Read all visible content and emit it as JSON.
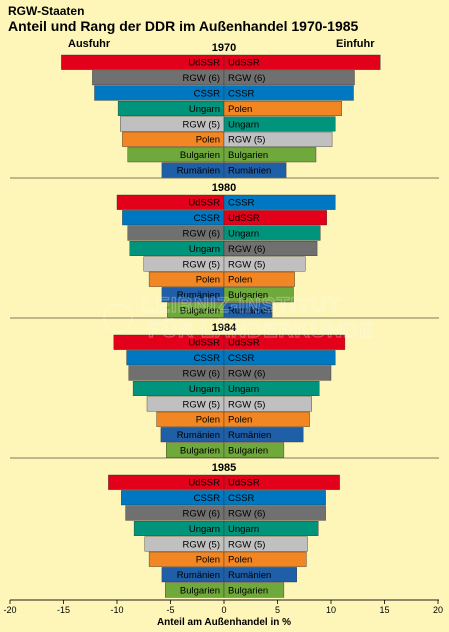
{
  "header": {
    "supertitle": "RGW-Staaten",
    "title": "Anteil und Rang der DDR im Außenhandel 1970-1985",
    "left_label": "Ausfuhr",
    "right_label": "Einfuhr"
  },
  "watermark": {
    "line1": "LEIBNIZ-INSTITUT",
    "line2": "FÜR LÄNDERKUNDE"
  },
  "colors": {
    "background": "#fdf6b8",
    "UdSSR": "#e2001a",
    "CSSR": "#0078c1",
    "RGW (6)": "#707070",
    "Ungarn": "#00947c",
    "RGW (5)": "#c0c0c0",
    "Polen": "#f28622",
    "Bulgarien": "#6fa83b",
    "Rumänien": "#1f5fa8"
  },
  "chart_data": {
    "type": "bar",
    "orientation": "horizontal-diverging",
    "xlabel": "Anteil am Außenhandel in %",
    "xlim": [
      -20,
      20
    ],
    "xticks": [
      -20,
      -15,
      -10,
      -5,
      0,
      5,
      10,
      15,
      20
    ],
    "panels": [
      {
        "year": "1970",
        "export": [
          {
            "label": "UdSSR",
            "value": 15.2
          },
          {
            "label": "RGW (6)",
            "value": 12.3
          },
          {
            "label": "CSSR",
            "value": 12.1
          },
          {
            "label": "Ungarn",
            "value": 9.9
          },
          {
            "label": "RGW (5)",
            "value": 9.7
          },
          {
            "label": "Polen",
            "value": 9.5
          },
          {
            "label": "Bulgarien",
            "value": 9.0
          },
          {
            "label": "Rumänien",
            "value": 5.8
          }
        ],
        "import": [
          {
            "label": "UdSSR",
            "value": 14.6
          },
          {
            "label": "RGW (6)",
            "value": 12.2
          },
          {
            "label": "CSSR",
            "value": 12.1
          },
          {
            "label": "Polen",
            "value": 11.0
          },
          {
            "label": "Ungarn",
            "value": 10.4
          },
          {
            "label": "RGW (5)",
            "value": 10.1
          },
          {
            "label": "Bulgarien",
            "value": 8.6
          },
          {
            "label": "Rumänien",
            "value": 5.8
          }
        ]
      },
      {
        "year": "1980",
        "export": [
          {
            "label": "UdSSR",
            "value": 10.0
          },
          {
            "label": "CSSR",
            "value": 9.5
          },
          {
            "label": "RGW (6)",
            "value": 9.0
          },
          {
            "label": "Ungarn",
            "value": 8.8
          },
          {
            "label": "RGW (5)",
            "value": 7.5
          },
          {
            "label": "Polen",
            "value": 7.0
          },
          {
            "label": "Rumänien",
            "value": 5.8
          },
          {
            "label": "Bulgarien",
            "value": 5.3
          }
        ],
        "import": [
          {
            "label": "CSSR",
            "value": 10.4
          },
          {
            "label": "UdSSR",
            "value": 9.6
          },
          {
            "label": "Ungarn",
            "value": 9.0
          },
          {
            "label": "RGW (6)",
            "value": 8.7
          },
          {
            "label": "RGW (5)",
            "value": 7.6
          },
          {
            "label": "Polen",
            "value": 6.6
          },
          {
            "label": "Bulgarien",
            "value": 6.5
          },
          {
            "label": "Rumänien",
            "value": 4.5
          }
        ]
      },
      {
        "year": "1984",
        "export": [
          {
            "label": "UdSSR",
            "value": 10.3
          },
          {
            "label": "CSSR",
            "value": 9.1
          },
          {
            "label": "RGW (6)",
            "value": 8.9
          },
          {
            "label": "Ungarn",
            "value": 8.5
          },
          {
            "label": "RGW (5)",
            "value": 7.2
          },
          {
            "label": "Polen",
            "value": 6.3
          },
          {
            "label": "Rumänien",
            "value": 5.9
          },
          {
            "label": "Bulgarien",
            "value": 5.4
          }
        ],
        "import": [
          {
            "label": "UdSSR",
            "value": 11.3
          },
          {
            "label": "CSSR",
            "value": 10.4
          },
          {
            "label": "RGW (6)",
            "value": 10.0
          },
          {
            "label": "Ungarn",
            "value": 8.9
          },
          {
            "label": "RGW (5)",
            "value": 8.2
          },
          {
            "label": "Polen",
            "value": 8.0
          },
          {
            "label": "Rumänien",
            "value": 7.4
          },
          {
            "label": "Bulgarien",
            "value": 5.6
          }
        ]
      },
      {
        "year": "1985",
        "export": [
          {
            "label": "UdSSR",
            "value": 10.8
          },
          {
            "label": "CSSR",
            "value": 9.6
          },
          {
            "label": "RGW (6)",
            "value": 9.2
          },
          {
            "label": "Ungarn",
            "value": 8.4
          },
          {
            "label": "RGW (5)",
            "value": 7.4
          },
          {
            "label": "Polen",
            "value": 7.0
          },
          {
            "label": "Rumänien",
            "value": 5.8
          },
          {
            "label": "Bulgarien",
            "value": 5.5
          }
        ],
        "import": [
          {
            "label": "UdSSR",
            "value": 10.8
          },
          {
            "label": "CSSR",
            "value": 9.5
          },
          {
            "label": "RGW (6)",
            "value": 9.5
          },
          {
            "label": "Ungarn",
            "value": 8.8
          },
          {
            "label": "RGW (5)",
            "value": 7.8
          },
          {
            "label": "Polen",
            "value": 7.7
          },
          {
            "label": "Rumänien",
            "value": 6.8
          },
          {
            "label": "Bulgarien",
            "value": 5.6
          }
        ]
      }
    ]
  }
}
